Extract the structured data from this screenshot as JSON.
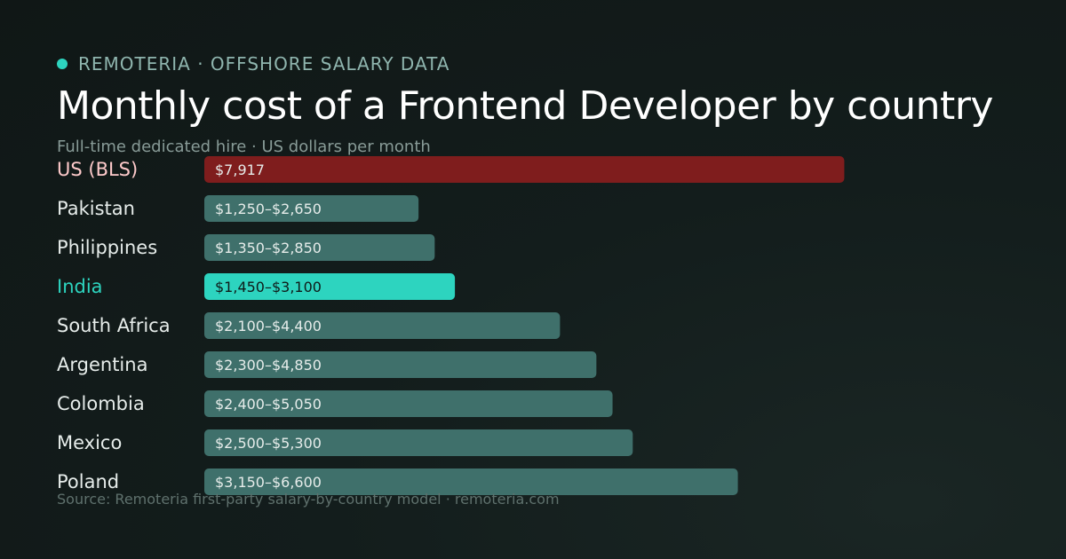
{
  "brand": {
    "name": "REMOTERIA · OFFSHORE SALARY DATA",
    "accent_color": "#2dd4bf"
  },
  "header": {
    "title": "Monthly cost of a Frontend Developer by country",
    "subtitle": "Full-time dedicated hire · US dollars per month"
  },
  "footer": {
    "source": "Source: Remoteria first-party salary-by-country model · remoteria.com"
  },
  "colors": {
    "benchmark": "#7f1d1d",
    "benchmark_label": "#fecaca",
    "highlight": "#2dd4bf",
    "default_bar": "#3f706b",
    "default_label": "#e6ecea",
    "bar_text": "#e6ecea",
    "highlight_bar_text": "#0f1b19"
  },
  "chart_data": {
    "type": "bar",
    "orientation": "horizontal",
    "title": "Monthly cost of a Frontend Developer by country",
    "subtitle": "Full-time dedicated hire · US dollars per month",
    "unit": "USD per month",
    "xlim": [
      0,
      8000
    ],
    "grid": false,
    "legend": "none",
    "categories": [
      "US (BLS)",
      "Pakistan",
      "Philippines",
      "India",
      "South Africa",
      "Argentina",
      "Colombia",
      "Mexico",
      "Poland"
    ],
    "bars": [
      {
        "category": "US (BLS)",
        "low": 7917,
        "high": 7917,
        "value_label": "$7,917",
        "style": "benchmark"
      },
      {
        "category": "Pakistan",
        "low": 1250,
        "high": 2650,
        "value_label": "$1,250–$2,650",
        "style": "default"
      },
      {
        "category": "Philippines",
        "low": 1350,
        "high": 2850,
        "value_label": "$1,350–$2,850",
        "style": "default"
      },
      {
        "category": "India",
        "low": 1450,
        "high": 3100,
        "value_label": "$1,450–$3,100",
        "style": "highlight"
      },
      {
        "category": "South Africa",
        "low": 2100,
        "high": 4400,
        "value_label": "$2,100–$4,400",
        "style": "default"
      },
      {
        "category": "Argentina",
        "low": 2300,
        "high": 4850,
        "value_label": "$2,300–$4,850",
        "style": "default"
      },
      {
        "category": "Colombia",
        "low": 2400,
        "high": 5050,
        "value_label": "$2,400–$5,050",
        "style": "default"
      },
      {
        "category": "Mexico",
        "low": 2500,
        "high": 5300,
        "value_label": "$2,500–$5,300",
        "style": "default"
      },
      {
        "category": "Poland",
        "low": 3150,
        "high": 6600,
        "value_label": "$3,150–$6,600",
        "style": "default"
      }
    ]
  }
}
